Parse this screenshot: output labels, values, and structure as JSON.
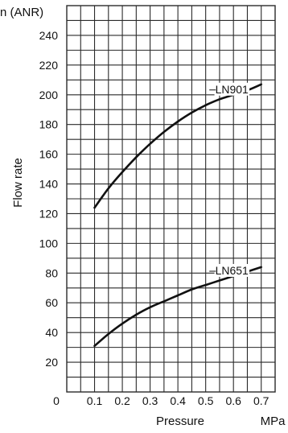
{
  "chart_data": {
    "type": "line",
    "unit_top": "n (ANR)",
    "ylabel": "Flow rate",
    "xlabel": "Pressure",
    "xunit": "MPa",
    "xlim": [
      0,
      0.75
    ],
    "ylim": [
      0,
      260
    ],
    "x_ticks": [
      "0",
      "0.1",
      "0.2",
      "0.3",
      "0.4",
      "0.5",
      "0.6",
      "0.7"
    ],
    "x_tick_values": [
      0,
      0.1,
      0.2,
      0.3,
      0.4,
      0.5,
      0.6,
      0.7
    ],
    "y_ticks": [
      "20",
      "40",
      "60",
      "80",
      "100",
      "120",
      "140",
      "160",
      "180",
      "200",
      "220",
      "240"
    ],
    "y_tick_values": [
      20,
      40,
      60,
      80,
      100,
      120,
      140,
      160,
      180,
      200,
      220,
      240
    ],
    "series": [
      {
        "name": "LN901",
        "x": [
          0.1,
          0.15,
          0.2,
          0.25,
          0.3,
          0.35,
          0.4,
          0.45,
          0.5,
          0.55,
          0.6,
          0.65,
          0.7
        ],
        "values": [
          124,
          137,
          148,
          158,
          167,
          175,
          182,
          188,
          193,
          197,
          200,
          203,
          207
        ]
      },
      {
        "name": "LN651",
        "x": [
          0.1,
          0.15,
          0.2,
          0.25,
          0.3,
          0.35,
          0.4,
          0.45,
          0.5,
          0.55,
          0.6,
          0.65,
          0.7
        ],
        "values": [
          31,
          39,
          46,
          52,
          57,
          61,
          65,
          69,
          72,
          75,
          78,
          81,
          84
        ]
      }
    ],
    "grid": true,
    "colors": {
      "line": "#111111",
      "grid": "#2a2a2a",
      "background": "#ffffff"
    }
  }
}
